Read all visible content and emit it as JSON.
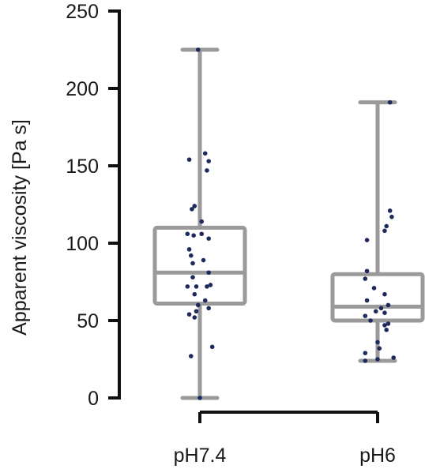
{
  "chart_data": {
    "type": "box",
    "ylabel": "Apparent viscosity [Pa s]",
    "ylim": [
      0,
      250
    ],
    "yticks": [
      0,
      50,
      100,
      150,
      200,
      250
    ],
    "categories": [
      "pH7.4",
      "pH6"
    ],
    "colors": {
      "box": "#9a9a9a",
      "points": "#1f2a5c",
      "axis": "#111111"
    },
    "boxes": [
      {
        "name": "pH7.4",
        "min": 0,
        "q1": 61,
        "median": 81,
        "q3": 110,
        "max": 225,
        "points": [
          [
            -0.02,
            225
          ],
          [
            0.06,
            158
          ],
          [
            0.1,
            153
          ],
          [
            -0.12,
            154
          ],
          [
            0.08,
            147
          ],
          [
            -0.06,
            124
          ],
          [
            -0.09,
            122
          ],
          [
            0.02,
            114
          ],
          [
            0.02,
            106
          ],
          [
            -0.14,
            106
          ],
          [
            -0.07,
            105
          ],
          [
            0.1,
            103
          ],
          [
            -0.12,
            96
          ],
          [
            -0.1,
            92
          ],
          [
            0.04,
            89
          ],
          [
            -0.08,
            87
          ],
          [
            0.1,
            81
          ],
          [
            -0.08,
            78
          ],
          [
            0.12,
            73
          ],
          [
            -0.14,
            72
          ],
          [
            0.08,
            72
          ],
          [
            -0.04,
            72
          ],
          [
            -0.06,
            67
          ],
          [
            0.06,
            63
          ],
          [
            -0.02,
            60
          ],
          [
            0.1,
            58
          ],
          [
            -0.04,
            56
          ],
          [
            -0.12,
            54
          ],
          [
            -0.06,
            52
          ],
          [
            0.14,
            33
          ],
          [
            -0.1,
            27
          ],
          [
            0.0,
            0
          ]
        ]
      },
      {
        "name": "pH6",
        "min": 24,
        "q1": 50,
        "median": 59,
        "q3": 80,
        "max": 191,
        "points": [
          [
            0.14,
            191
          ],
          [
            0.14,
            121
          ],
          [
            0.16,
            117
          ],
          [
            0.1,
            111
          ],
          [
            0.08,
            108
          ],
          [
            -0.12,
            102
          ],
          [
            -0.12,
            82
          ],
          [
            -0.14,
            77
          ],
          [
            -0.04,
            71
          ],
          [
            0.08,
            67
          ],
          [
            -0.12,
            63
          ],
          [
            0.12,
            60
          ],
          [
            0.04,
            58
          ],
          [
            -0.02,
            56
          ],
          [
            0.08,
            55
          ],
          [
            -0.14,
            53
          ],
          [
            -0.08,
            50
          ],
          [
            0.12,
            48
          ],
          [
            0.08,
            47
          ],
          [
            0.1,
            44
          ],
          [
            0.0,
            36
          ],
          [
            0.02,
            32
          ],
          [
            -0.14,
            29
          ],
          [
            0.18,
            26
          ],
          [
            0.0,
            25
          ],
          [
            -0.14,
            24
          ]
        ]
      }
    ]
  }
}
